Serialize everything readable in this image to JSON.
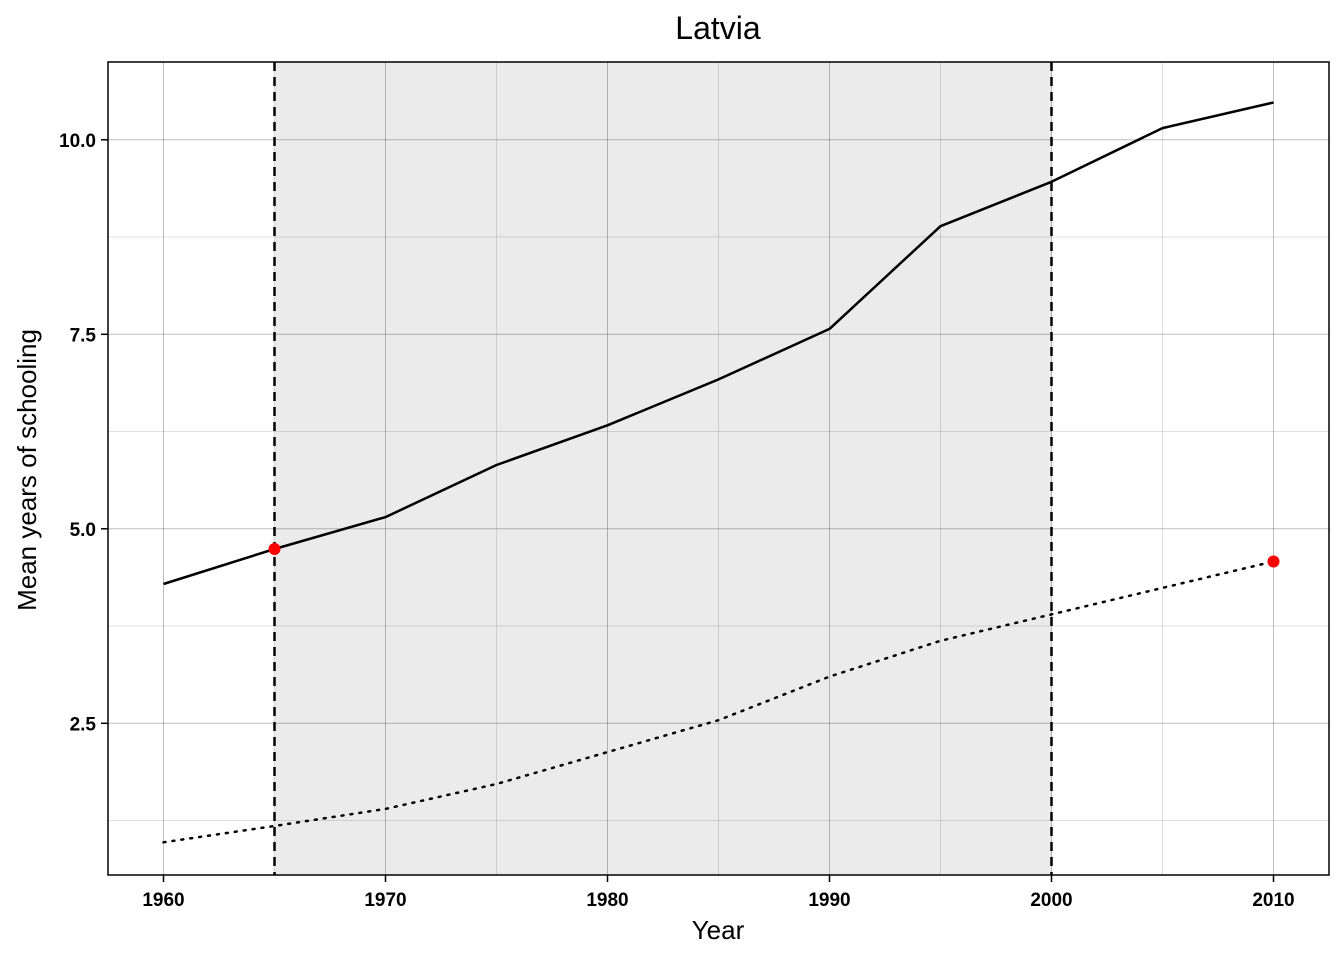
{
  "chart_data": {
    "type": "line",
    "title": "Latvia",
    "xlabel": "Year",
    "ylabel": "Mean years of schooling",
    "xlim": [
      1957.5,
      2012.5
    ],
    "ylim": [
      0.55,
      11.0
    ],
    "x_ticks": [
      1960,
      1970,
      1980,
      1990,
      2000,
      2010
    ],
    "x_tick_labels": [
      "1960",
      "1970",
      "1980",
      "1990",
      "2000",
      "2010"
    ],
    "y_ticks": [
      2.5,
      5.0,
      7.5,
      10.0
    ],
    "y_tick_labels": [
      "2.5",
      "5.0",
      "7.5",
      "10.0"
    ],
    "grid": true,
    "shaded_region": {
      "x_start": 1965,
      "x_end": 2000
    },
    "vertical_lines": [
      1965,
      2000
    ],
    "x": [
      1960,
      1965,
      1970,
      1975,
      1980,
      1985,
      1990,
      1995,
      2000,
      2005,
      2010
    ],
    "series": [
      {
        "style": "solid",
        "values": [
          4.29,
          4.74,
          5.15,
          5.82,
          6.33,
          6.92,
          7.57,
          8.89,
          9.46,
          10.15,
          10.48
        ]
      },
      {
        "style": "dotted",
        "values": [
          0.97,
          1.18,
          1.4,
          1.72,
          2.13,
          2.54,
          3.1,
          3.56,
          3.9,
          4.24,
          4.58
        ]
      }
    ],
    "highlight_points": [
      {
        "x": 1965,
        "y": 4.74
      },
      {
        "x": 2010,
        "y": 4.58
      }
    ],
    "colors": {
      "line": "#000000",
      "point": "#ff0000",
      "shade": "#ebebeb",
      "grid": "#b3b3b3"
    }
  }
}
